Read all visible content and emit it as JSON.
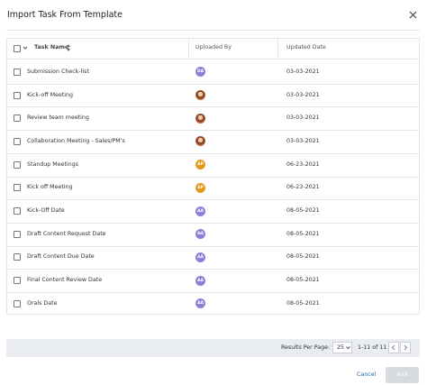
{
  "header": {
    "title": "Import Task From Template"
  },
  "table": {
    "columns": [
      "Task Name",
      "Uploaded By",
      "Updated Date"
    ],
    "rows": [
      {
        "task": "Submission Check-list",
        "avatar": "DA",
        "avatar_color": "#8e7fd6",
        "date": "03-03-2021"
      },
      {
        "task": "Kick-off Meeting",
        "date": "03-03-2021"
      },
      {
        "task": "Review team meeting",
        "date": "03-03-2021"
      },
      {
        "task": "Collaboration Meeting - Sales/PM's",
        "date": "03-03-2021"
      },
      {
        "task": "Standup Meetings",
        "avatar": "AP",
        "avatar_color": "#e39a1f",
        "date": "06-23-2021"
      },
      {
        "task": "Kick off Meeting",
        "avatar": "AP",
        "avatar_color": "#e39a1f",
        "date": "06-23-2021"
      },
      {
        "task": "Kick-Off Date",
        "avatar": "AA",
        "avatar_color": "#8e7fd6",
        "date": "08-05-2021"
      },
      {
        "task": "Draft Content Request Date",
        "avatar": "AA",
        "avatar_color": "#8e7fd6",
        "date": "08-05-2021"
      },
      {
        "task": "Draft Content Due Date",
        "avatar": "AA",
        "avatar_color": "#8e7fd6",
        "date": "08-05-2021"
      },
      {
        "task": "Final Content Review Date",
        "avatar": "AA",
        "avatar_color": "#8e7fd6",
        "date": "08-05-2021"
      },
      {
        "task": "Orals Date",
        "avatar": "AA",
        "avatar_color": "#8e7fd6",
        "date": "08-05-2021"
      }
    ]
  },
  "pagination": {
    "label": "Results Per Page:",
    "per_page": "25",
    "range": "1-11 of 11"
  },
  "footer": {
    "cancel": "Cancel",
    "add": "Add"
  }
}
